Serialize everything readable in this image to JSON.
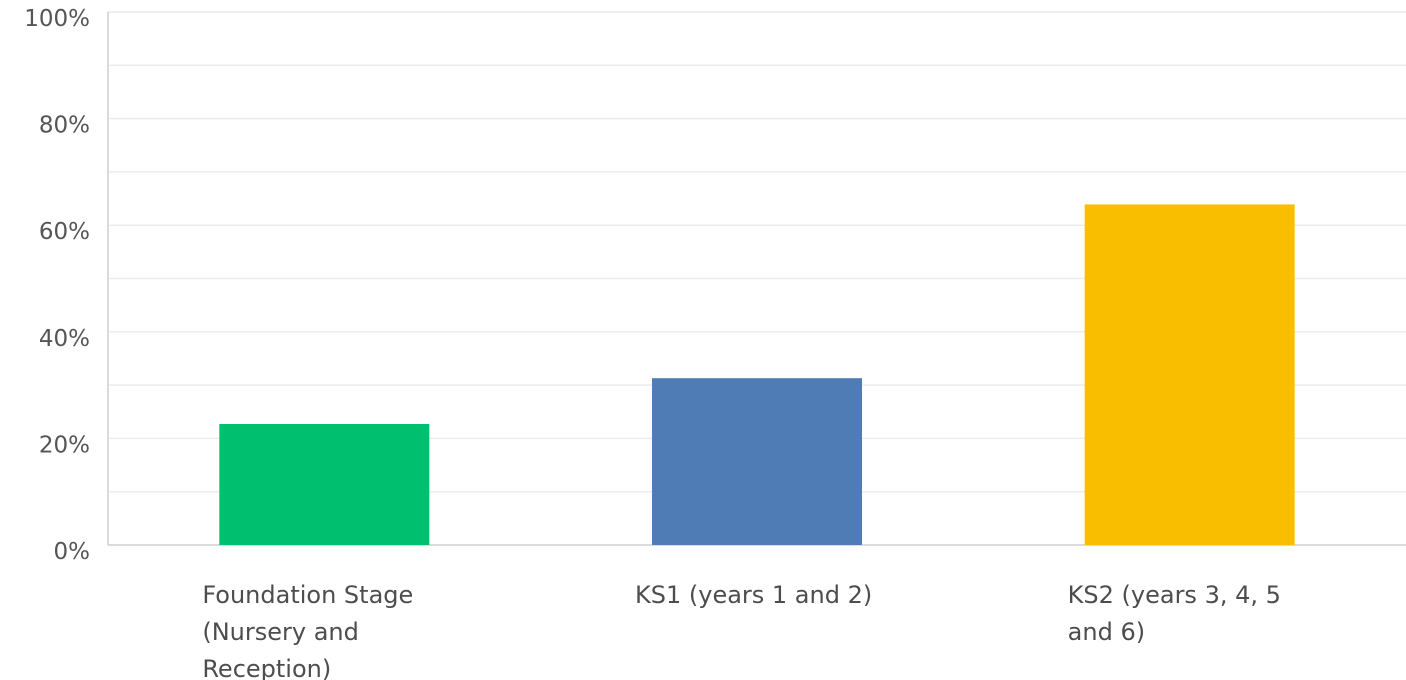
{
  "chart_data": {
    "type": "bar",
    "title": "",
    "xlabel": "",
    "ylabel": "",
    "ylim": [
      0,
      100
    ],
    "yticks": [
      "0%",
      "20%",
      "40%",
      "60%",
      "80%",
      "100%"
    ],
    "gridlines": "every 10%",
    "categories": [
      [
        "Foundation Stage",
        "(Nursery and",
        "Reception)"
      ],
      [
        "KS1 (years 1 and 2)"
      ],
      [
        "KS2 (years 3, 4, 5",
        "and 6)"
      ]
    ],
    "values": [
      22.7,
      31.3,
      63.9
    ],
    "colors": [
      "#00bf6f",
      "#507cb6",
      "#f9be00"
    ]
  }
}
